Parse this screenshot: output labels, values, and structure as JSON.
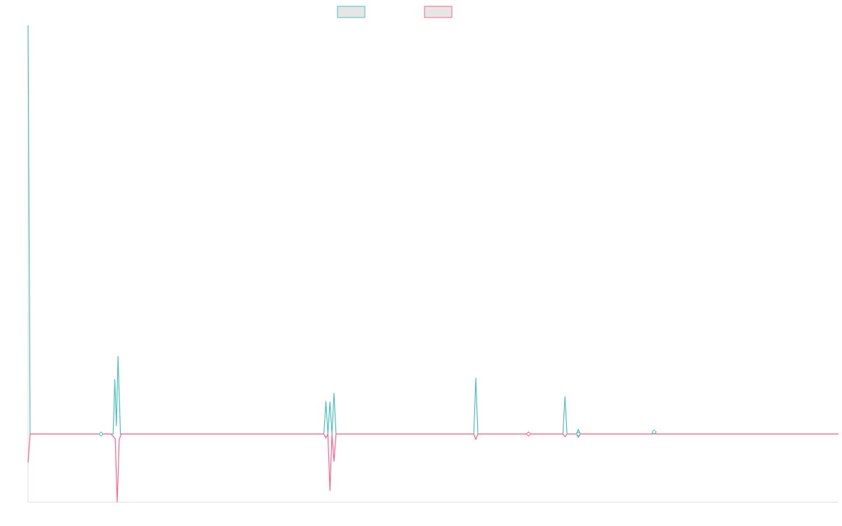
{
  "chart_data": {
    "type": "line",
    "title": "",
    "xlabel": "",
    "ylabel": "",
    "xlim": [
      0,
      200
    ],
    "ylim": [
      -100,
      600
    ],
    "grid": false,
    "legend_position": "top-center",
    "series": [
      {
        "color": "#4bc0c0",
        "fill": "#e6e6e6",
        "points": [
          [
            0,
            600
          ],
          [
            0.5,
            0
          ],
          [
            18,
            0
          ],
          [
            21,
            0
          ],
          [
            21.4,
            80
          ],
          [
            21.8,
            12
          ],
          [
            22.2,
            114
          ],
          [
            22.8,
            0
          ],
          [
            73,
            0
          ],
          [
            73.5,
            48
          ],
          [
            74,
            0
          ],
          [
            74.5,
            47
          ],
          [
            75,
            0
          ],
          [
            75.5,
            60
          ],
          [
            76,
            0
          ],
          [
            110,
            0
          ],
          [
            110.5,
            82
          ],
          [
            111,
            0
          ],
          [
            123.5,
            0
          ],
          [
            132,
            0
          ],
          [
            132.5,
            55
          ],
          [
            133,
            0
          ],
          [
            135.3,
            0
          ],
          [
            135.8,
            7
          ],
          [
            136.3,
            0
          ],
          [
            154,
            0
          ],
          [
            154.5,
            5
          ],
          [
            155,
            0
          ],
          [
            200,
            0
          ]
        ]
      },
      {
        "color": "#ff6384",
        "fill": "#e6e6e6",
        "points": [
          [
            0,
            -42
          ],
          [
            0.5,
            0
          ],
          [
            18,
            0
          ],
          [
            20.5,
            0
          ],
          [
            21.5,
            -7
          ],
          [
            22,
            -100
          ],
          [
            22.5,
            -8
          ],
          [
            23,
            0
          ],
          [
            73,
            0
          ],
          [
            73.5,
            -6
          ],
          [
            74,
            0
          ],
          [
            74.5,
            -83
          ],
          [
            75,
            0
          ],
          [
            75.5,
            -40
          ],
          [
            76,
            0
          ],
          [
            110,
            0
          ],
          [
            110.5,
            -8
          ],
          [
            111,
            0
          ],
          [
            123.5,
            0
          ],
          [
            132,
            0
          ],
          [
            132.5,
            -4
          ],
          [
            133,
            0
          ],
          [
            135.3,
            0
          ],
          [
            135.8,
            -5
          ],
          [
            136.3,
            0
          ],
          [
            200,
            0
          ]
        ]
      }
    ],
    "markers": [
      {
        "x": 18,
        "y": 0,
        "color": "#4bc0c0"
      },
      {
        "x": 123.5,
        "y": 0,
        "color": "#ff6384"
      },
      {
        "x": 135.8,
        "y": 0,
        "color": "#4bc0c0"
      },
      {
        "x": 154.5,
        "y": 3,
        "color": "#4bc0c0"
      }
    ]
  }
}
